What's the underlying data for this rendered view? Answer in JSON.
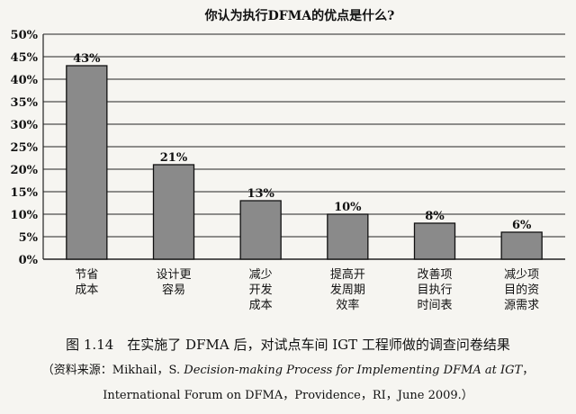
{
  "chart_data": {
    "type": "bar",
    "title": "你认为执行DFMA的优点是什么?",
    "categories": [
      [
        "节省",
        "成本"
      ],
      [
        "设计更",
        "容易"
      ],
      [
        "减少",
        "开发",
        "成本"
      ],
      [
        "提高开",
        "发周期",
        "效率"
      ],
      [
        "改善项",
        "目执行",
        "时间表"
      ],
      [
        "减少项",
        "目的资",
        "源需求"
      ]
    ],
    "values": [
      43,
      21,
      13,
      10,
      8,
      6
    ],
    "data_labels": [
      "43%",
      "21%",
      "13%",
      "10%",
      "8%",
      "6%"
    ],
    "y_ticks": [
      "0%",
      "5%",
      "10%",
      "15%",
      "20%",
      "25%",
      "30%",
      "35%",
      "40%",
      "45%",
      "50%"
    ],
    "ylim": [
      0,
      50
    ],
    "grid": true,
    "bar_color": "#8a8a8a"
  },
  "caption": {
    "figure": "图 1.14　在实施了 DFMA 后，对试点车间 IGT 工程师做的调查问卷结果",
    "source_prefix": "（资料来源：Mikhail，S. ",
    "source_title": "Decision-making Process for Implementing DFMA at IGT",
    "source_suffix": "，",
    "source_line2": "International Forum on DFMA，Providence，RI，June 2009.）"
  }
}
